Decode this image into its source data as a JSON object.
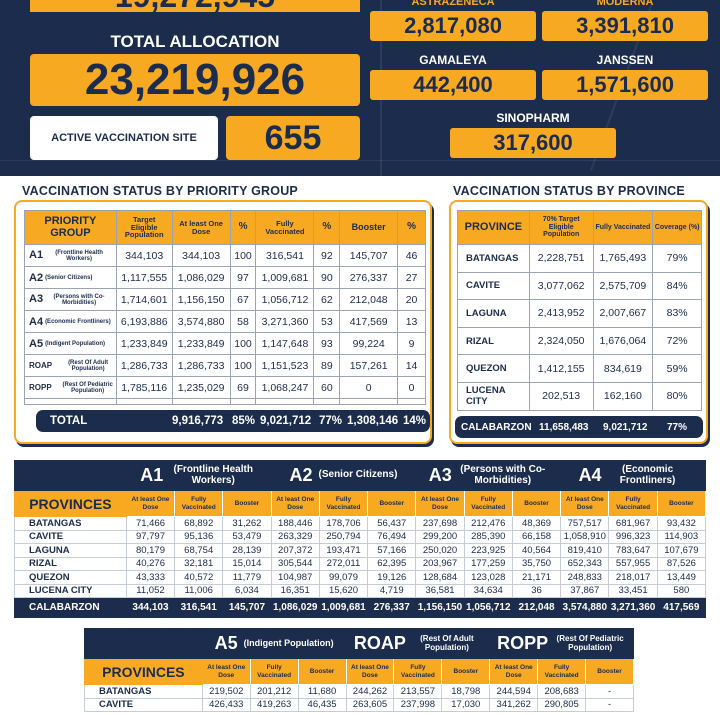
{
  "header": {
    "top_cut_value": "19,272,945",
    "total_allocation_label": "TOTAL ALLOCATION",
    "total_allocation_value": "23,219,926",
    "active_site_label": "ACTIVE VACCINATION SITE",
    "active_site_value": "655",
    "brands": [
      {
        "name": "ASTRAZENECA",
        "value": "2,817,080"
      },
      {
        "name": "MODERNA",
        "value": "3,391,810"
      },
      {
        "name": "GAMALEYA",
        "value": "442,400"
      },
      {
        "name": "JANSSEN",
        "value": "1,571,600"
      },
      {
        "name": "SINOPHARM",
        "value": "317,600"
      }
    ]
  },
  "priority": {
    "title": "VACCINATION STATUS BY PRIORITY GROUP",
    "headers": [
      "PRIORITY GROUP",
      "Target Eligible Population",
      "At least One Dose",
      "%",
      "Fully Vaccinated",
      "%",
      "Booster",
      "%"
    ],
    "rows": [
      {
        "code": "A1",
        "desc": "(Frontline Health Workers)",
        "target": "344,103",
        "dose": "344,103",
        "p1": "100",
        "fully": "316,541",
        "p2": "92",
        "booster": "145,707",
        "p3": "46"
      },
      {
        "code": "A2",
        "desc": "(Senior Citizens)",
        "target": "1,117,555",
        "dose": "1,086,029",
        "p1": "97",
        "fully": "1,009,681",
        "p2": "90",
        "booster": "276,337",
        "p3": "27"
      },
      {
        "code": "A3",
        "desc": "(Persons with Co-Morbidities)",
        "target": "1,714,601",
        "dose": "1,156,150",
        "p1": "67",
        "fully": "1,056,712",
        "p2": "62",
        "booster": "212,048",
        "p3": "20"
      },
      {
        "code": "A4",
        "desc": "(Economic Frontliners)",
        "target": "6,193,886",
        "dose": "3,574,880",
        "p1": "58",
        "fully": "3,271,360",
        "p2": "53",
        "booster": "417,569",
        "p3": "13"
      },
      {
        "code": "A5",
        "desc": "(Indigent Population)",
        "target": "1,233,849",
        "dose": "1,233,849",
        "p1": "100",
        "fully": "1,147,648",
        "p2": "93",
        "booster": "99,224",
        "p3": "9"
      },
      {
        "code": "ROAP",
        "desc": "(Rest Of Adult Population)",
        "target": "1,286,733",
        "dose": "1,286,733",
        "p1": "100",
        "fully": "1,151,523",
        "p2": "89",
        "booster": "157,261",
        "p3": "14"
      },
      {
        "code": "ROPP",
        "desc": "(Rest Of Pediatric Population)",
        "target": "1,785,116",
        "dose": "1,235,029",
        "p1": "69",
        "fully": "1,068,247",
        "p2": "60",
        "booster": "0",
        "p3": "0"
      }
    ],
    "total": {
      "label": "TOTAL",
      "dose": "9,916,773",
      "p1": "85%",
      "fully": "9,021,712",
      "p2": "77%",
      "booster": "1,308,146",
      "p3": "14%"
    }
  },
  "province": {
    "title": "VACCINATION STATUS BY PROVINCE",
    "headers": [
      "PROVINCE",
      "70% Target Eligible Population",
      "Fully Vaccinated",
      "Coverage (%)"
    ],
    "rows": [
      {
        "name": "BATANGAS",
        "target": "2,228,751",
        "fully": "1,765,493",
        "cov": "79%"
      },
      {
        "name": "CAVITE",
        "target": "3,077,062",
        "fully": "2,575,709",
        "cov": "84%"
      },
      {
        "name": "LAGUNA",
        "target": "2,413,952",
        "fully": "2,007,667",
        "cov": "83%"
      },
      {
        "name": "RIZAL",
        "target": "2,324,050",
        "fully": "1,676,064",
        "cov": "72%"
      },
      {
        "name": "QUEZON",
        "target": "1,412,155",
        "fully": "834,619",
        "cov": "59%"
      },
      {
        "name": "LUCENA CITY",
        "target": "202,513",
        "fully": "162,160",
        "cov": "80%"
      }
    ],
    "total": {
      "name": "CALABARZON",
      "target": "11,658,483",
      "fully": "9,021,712",
      "cov": "77%"
    }
  },
  "breakdown1": {
    "provinces_label": "PROVINCES",
    "groups": [
      {
        "code": "A1",
        "desc": "(Frontline Health Workers)"
      },
      {
        "code": "A2",
        "desc": "(Senior Citizens)"
      },
      {
        "code": "A3",
        "desc": "(Persons with Co-Morbidities)"
      },
      {
        "code": "A4",
        "desc": "(Economic Frontliners)"
      }
    ],
    "sub": [
      "At least One Dose",
      "Fully Vaccinated",
      "Booster"
    ],
    "rows": [
      {
        "name": "BATANGAS",
        "v": [
          "71,466",
          "68,892",
          "31,262",
          "188,446",
          "178,706",
          "56,437",
          "237,698",
          "212,476",
          "48,369",
          "757,517",
          "681,967",
          "93,432"
        ]
      },
      {
        "name": "CAVITE",
        "v": [
          "97,797",
          "95,136",
          "53,479",
          "263,329",
          "250,794",
          "76,494",
          "299,200",
          "285,390",
          "66,158",
          "1,058,910",
          "996,323",
          "114,903"
        ]
      },
      {
        "name": "LAGUNA",
        "v": [
          "80,179",
          "68,754",
          "28,139",
          "207,372",
          "193,471",
          "57,166",
          "250,020",
          "223,925",
          "40,564",
          "819,410",
          "783,647",
          "107,679"
        ]
      },
      {
        "name": "RIZAL",
        "v": [
          "40,276",
          "32,181",
          "15,014",
          "305,544",
          "272,011",
          "62,395",
          "203,967",
          "177,259",
          "35,750",
          "652,343",
          "557,955",
          "87,526"
        ]
      },
      {
        "name": "QUEZON",
        "v": [
          "43,333",
          "40,572",
          "11,779",
          "104,987",
          "99,079",
          "19,126",
          "128,684",
          "123,028",
          "21,171",
          "248,833",
          "218,017",
          "13,449"
        ]
      },
      {
        "name": "LUCENA CITY",
        "v": [
          "11,052",
          "11,006",
          "6,034",
          "16,351",
          "15,620",
          "4,719",
          "36,581",
          "34,634",
          "36",
          "37,867",
          "33,451",
          "580"
        ]
      }
    ],
    "total": {
      "name": "CALABARZON",
      "v": [
        "344,103",
        "316,541",
        "145,707",
        "1,086,029",
        "1,009,681",
        "276,337",
        "1,156,150",
        "1,056,712",
        "212,048",
        "3,574,880",
        "3,271,360",
        "417,569"
      ]
    }
  },
  "breakdown2": {
    "provinces_label": "PROVINCES",
    "groups": [
      {
        "code": "A5",
        "desc": "(Indigent Population)"
      },
      {
        "code": "ROAP",
        "desc": "(Rest Of Adult Population)"
      },
      {
        "code": "ROPP",
        "desc": "(Rest Of Pediatric Population)"
      }
    ],
    "sub": [
      "At least One Dose",
      "Fully Vaccinated",
      "Booster"
    ],
    "rows": [
      {
        "name": "BATANGAS",
        "v": [
          "219,502",
          "201,212",
          "11,680",
          "244,262",
          "213,557",
          "18,798",
          "244,594",
          "208,683",
          "-"
        ]
      },
      {
        "name": "CAVITE",
        "v": [
          "426,433",
          "419,263",
          "46,435",
          "263,605",
          "237,998",
          "17,030",
          "341,262",
          "290,805",
          "-"
        ]
      }
    ]
  }
}
